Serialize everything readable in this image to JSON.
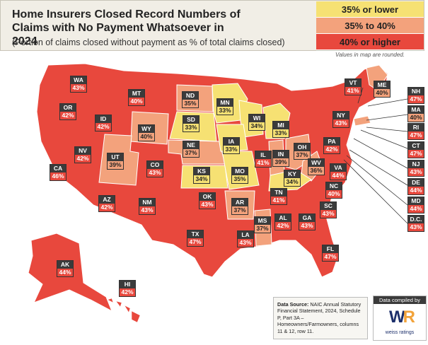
{
  "header": {
    "title": "Home Insurers Closed Record Numbers of Claims with No Payment Whatsoever in 2024",
    "subtitle": "(Portion of claims closed without payment as % of total claims closed)"
  },
  "legend": {
    "items": [
      {
        "label": "35% or lower",
        "color": "#f6e173"
      },
      {
        "label": "35% to 40%",
        "color": "#f3a27c"
      },
      {
        "label": "40% or higher",
        "color": "#e8483d"
      }
    ],
    "note": "Values in map are rounded."
  },
  "colors": {
    "low": "#f6e173",
    "mid": "#f3a27c",
    "high": "#e8483d",
    "land": "#e8483d"
  },
  "states": [
    {
      "abbr": "WA",
      "value": "43%",
      "tier": "hi"
    },
    {
      "abbr": "OR",
      "value": "42%",
      "tier": "hi"
    },
    {
      "abbr": "CA",
      "value": "46%",
      "tier": "hi"
    },
    {
      "abbr": "ID",
      "value": "42%",
      "tier": "hi"
    },
    {
      "abbr": "NV",
      "value": "42%",
      "tier": "hi"
    },
    {
      "abbr": "MT",
      "value": "40%",
      "tier": "hi"
    },
    {
      "abbr": "WY",
      "value": "40%",
      "tier": "mid"
    },
    {
      "abbr": "UT",
      "value": "39%",
      "tier": "mid"
    },
    {
      "abbr": "AZ",
      "value": "42%",
      "tier": "hi"
    },
    {
      "abbr": "CO",
      "value": "43%",
      "tier": "hi"
    },
    {
      "abbr": "NM",
      "value": "43%",
      "tier": "hi"
    },
    {
      "abbr": "ND",
      "value": "35%",
      "tier": "mid"
    },
    {
      "abbr": "SD",
      "value": "33%",
      "tier": "lo"
    },
    {
      "abbr": "NE",
      "value": "37%",
      "tier": "mid"
    },
    {
      "abbr": "KS",
      "value": "34%",
      "tier": "lo"
    },
    {
      "abbr": "OK",
      "value": "43%",
      "tier": "hi"
    },
    {
      "abbr": "TX",
      "value": "47%",
      "tier": "hi"
    },
    {
      "abbr": "MN",
      "value": "33%",
      "tier": "lo"
    },
    {
      "abbr": "IA",
      "value": "33%",
      "tier": "lo"
    },
    {
      "abbr": "MO",
      "value": "35%",
      "tier": "lo"
    },
    {
      "abbr": "AR",
      "value": "37%",
      "tier": "mid"
    },
    {
      "abbr": "LA",
      "value": "43%",
      "tier": "hi"
    },
    {
      "abbr": "WI",
      "value": "34%",
      "tier": "lo"
    },
    {
      "abbr": "IL",
      "value": "41%",
      "tier": "hi"
    },
    {
      "abbr": "MI",
      "value": "33%",
      "tier": "lo"
    },
    {
      "abbr": "IN",
      "value": "39%",
      "tier": "mid"
    },
    {
      "abbr": "OH",
      "value": "37%",
      "tier": "mid"
    },
    {
      "abbr": "KY",
      "value": "34%",
      "tier": "lo"
    },
    {
      "abbr": "TN",
      "value": "41%",
      "tier": "hi"
    },
    {
      "abbr": "MS",
      "value": "37%",
      "tier": "mid"
    },
    {
      "abbr": "AL",
      "value": "42%",
      "tier": "hi"
    },
    {
      "abbr": "GA",
      "value": "43%",
      "tier": "hi"
    },
    {
      "abbr": "FL",
      "value": "47%",
      "tier": "hi"
    },
    {
      "abbr": "SC",
      "value": "43%",
      "tier": "hi"
    },
    {
      "abbr": "NC",
      "value": "40%",
      "tier": "hi"
    },
    {
      "abbr": "VA",
      "value": "44%",
      "tier": "hi"
    },
    {
      "abbr": "WV",
      "value": "36%",
      "tier": "mid"
    },
    {
      "abbr": "PA",
      "value": "42%",
      "tier": "hi"
    },
    {
      "abbr": "NY",
      "value": "43%",
      "tier": "hi"
    },
    {
      "abbr": "VT",
      "value": "41%",
      "tier": "hi"
    },
    {
      "abbr": "ME",
      "value": "40%",
      "tier": "mid"
    },
    {
      "abbr": "NH",
      "value": "47%",
      "tier": "hi"
    },
    {
      "abbr": "MA",
      "value": "40%",
      "tier": "mid"
    },
    {
      "abbr": "RI",
      "value": "47%",
      "tier": "hi"
    },
    {
      "abbr": "CT",
      "value": "47%",
      "tier": "hi"
    },
    {
      "abbr": "NJ",
      "value": "43%",
      "tier": "hi"
    },
    {
      "abbr": "DE",
      "value": "44%",
      "tier": "hi"
    },
    {
      "abbr": "MD",
      "value": "44%",
      "tier": "hi"
    },
    {
      "abbr": "D.C.",
      "value": "43%",
      "tier": "hi"
    },
    {
      "abbr": "AK",
      "value": "44%",
      "tier": "hi"
    },
    {
      "abbr": "HI",
      "value": "42%",
      "tier": "hi"
    }
  ],
  "source": {
    "label": "Data Source:",
    "text": "NAIC Annual Statutory Financial Statement, 2024, Schedule P, Part 3A – Homeowners/Farmowners, columns 11 & 12, row 11."
  },
  "logo": {
    "caption": "Data compiled by",
    "brand": "weiss ratings"
  }
}
